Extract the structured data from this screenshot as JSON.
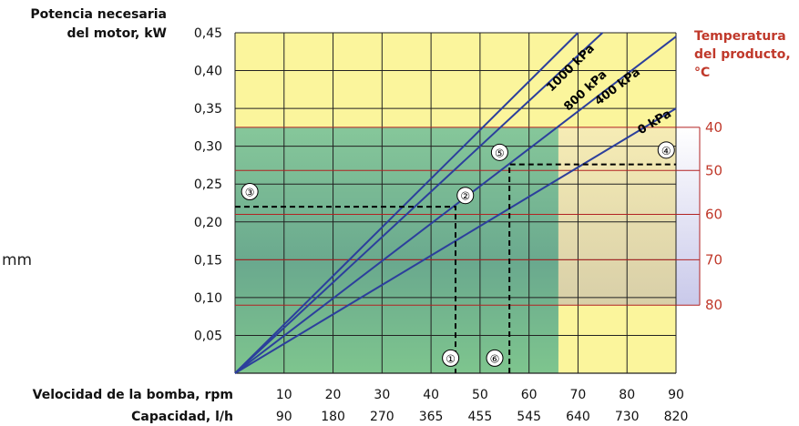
{
  "side_text": "mm",
  "chart_data": {
    "type": "line",
    "ylabel": [
      "Potencia necesaria",
      "del motor, kW"
    ],
    "xlabel_rpm": "Velocidad de la bomba, rpm",
    "xlabel_cap": "Capacidad, l/h",
    "right_label": [
      "Temperatura",
      "del producto,",
      "°C"
    ],
    "y_ticks": [
      "0,05",
      "0,10",
      "0,15",
      "0,20",
      "0,25",
      "0,30",
      "0,35",
      "0,40",
      "0,45"
    ],
    "y_values": [
      0.05,
      0.1,
      0.15,
      0.2,
      0.25,
      0.3,
      0.35,
      0.4,
      0.45
    ],
    "ylim": [
      0,
      0.45
    ],
    "xlim": [
      0,
      90
    ],
    "rpm_ticks": [
      "10",
      "20",
      "30",
      "40",
      "50",
      "60",
      "70",
      "80",
      "90"
    ],
    "rpm_values": [
      10,
      20,
      30,
      40,
      50,
      60,
      70,
      80,
      90
    ],
    "capacity_ticks": [
      "90",
      "180",
      "270",
      "365",
      "455",
      "545",
      "640",
      "730",
      "820"
    ],
    "temperature_ticks": [
      "40",
      "50",
      "60",
      "70",
      "80"
    ],
    "temperature_levels_kW": [
      0.325,
      0.268,
      0.21,
      0.15,
      0.09
    ],
    "series": [
      {
        "name": "1000 kPa",
        "x": [
          0,
          70
        ],
        "y": [
          0,
          0.45
        ]
      },
      {
        "name": "800 kPa",
        "x": [
          0,
          75
        ],
        "y": [
          0,
          0.45
        ]
      },
      {
        "name": "400 kPa",
        "x": [
          0,
          90
        ],
        "y": [
          0,
          0.445
        ]
      },
      {
        "name": "0 kPa",
        "x": [
          0,
          90
        ],
        "y": [
          0,
          0.35
        ]
      }
    ],
    "regions": {
      "green_max_rpm": 66,
      "green_max_kW": 0.325,
      "temperature_max_kW": 0.325
    },
    "example_points": [
      {
        "label": "①",
        "rpm": 44,
        "kW": 0.02
      },
      {
        "label": "②",
        "rpm": 47,
        "kW": 0.235
      },
      {
        "label": "③",
        "rpm": 3,
        "kW": 0.24
      },
      {
        "label": "④",
        "rpm": 88,
        "kW": 0.295
      },
      {
        "label": "⑤",
        "rpm": 54,
        "kW": 0.292
      },
      {
        "label": "⑥",
        "rpm": 53,
        "kW": 0.02
      }
    ],
    "dashed_paths": [
      {
        "rpm": [
          0,
          45,
          45
        ],
        "kW": [
          0.22,
          0.22,
          0
        ]
      },
      {
        "rpm": [
          56,
          56,
          90
        ],
        "kW": [
          0,
          0.276,
          0.276
        ]
      }
    ]
  }
}
